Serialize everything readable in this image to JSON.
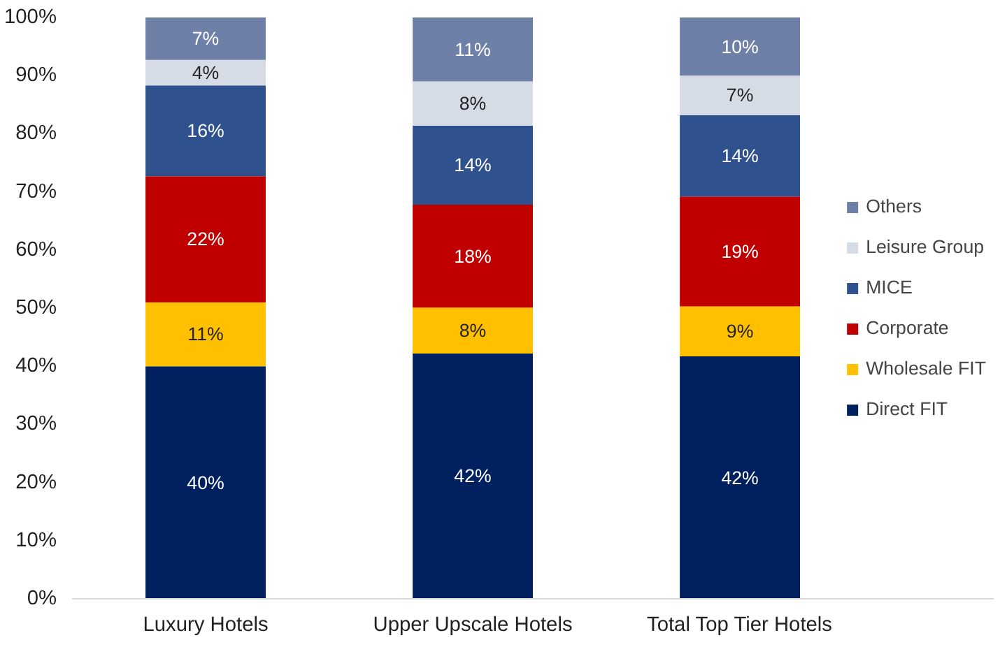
{
  "chart_data": {
    "type": "bar",
    "stacked": true,
    "categories": [
      "Luxury Hotels",
      "Upper Upscale Hotels",
      "Total Top Tier Hotels"
    ],
    "series": [
      {
        "name": "Direct FIT",
        "color": "#002060",
        "values": [
          40,
          42.2,
          41.7
        ],
        "value_labels": [
          "40%",
          "42%",
          "42%"
        ]
      },
      {
        "name": "Wholesale FIT",
        "color": "#ffc000",
        "values": [
          11,
          7.9,
          8.6
        ],
        "value_labels": [
          "11%",
          "8%",
          "9%"
        ]
      },
      {
        "name": "Corporate",
        "color": "#c00000",
        "values": [
          21.7,
          17.7,
          18.9
        ],
        "value_labels": [
          "22%",
          "18%",
          "19%"
        ]
      },
      {
        "name": "MICE",
        "color": "#2f528f",
        "values": [
          15.6,
          13.6,
          14.0
        ],
        "value_labels": [
          "16%",
          "14%",
          "14%"
        ]
      },
      {
        "name": "Leisure Group",
        "color": "#d6dce5",
        "values": [
          4.4,
          7.6,
          6.8
        ],
        "value_labels": [
          "4%",
          "8%",
          "7%"
        ]
      },
      {
        "name": "Others",
        "color": "#6f80a8",
        "values": [
          7.3,
          11.0,
          10.0
        ],
        "value_labels": [
          "7%",
          "11%",
          "10%"
        ]
      }
    ],
    "ylim": [
      0,
      100
    ],
    "yticks": [
      {
        "value": 0,
        "label": "0%"
      },
      {
        "value": 10,
        "label": "10%"
      },
      {
        "value": 20,
        "label": "20%"
      },
      {
        "value": 30,
        "label": "30%"
      },
      {
        "value": 40,
        "label": "40%"
      },
      {
        "value": 50,
        "label": "50%"
      },
      {
        "value": 60,
        "label": "60%"
      },
      {
        "value": 70,
        "label": "70%"
      },
      {
        "value": 80,
        "label": "80%"
      },
      {
        "value": 90,
        "label": "90%"
      },
      {
        "value": 100,
        "label": "100%"
      }
    ],
    "grid": false,
    "legend": "right"
  }
}
